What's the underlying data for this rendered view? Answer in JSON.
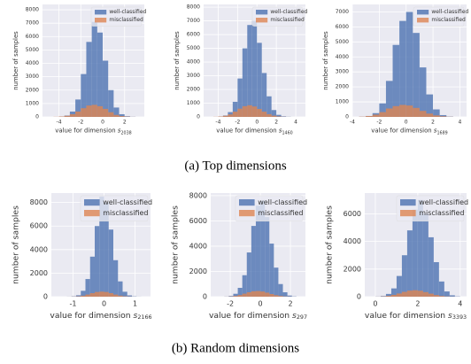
{
  "chart_data": [
    {
      "type": "histogram",
      "xlabel": "value for dimension",
      "xlabel_var": "s",
      "xlabel_sub": "2038",
      "ylabel": "number of samples",
      "bins": [
        -4.5,
        -4,
        -3.5,
        -3,
        -2.5,
        -2,
        -1.5,
        -1,
        -0.5,
        0,
        0.5,
        1,
        1.5,
        2,
        2.5,
        3
      ],
      "series": [
        {
          "name": "well-classified",
          "color": "#4c72b0",
          "values": [
            0,
            20,
            100,
            400,
            1300,
            3200,
            5600,
            7100,
            6300,
            4200,
            2000,
            700,
            200,
            50,
            10
          ]
        },
        {
          "name": "misclassified",
          "color": "#dd8452",
          "values": [
            10,
            30,
            80,
            200,
            400,
            650,
            850,
            900,
            800,
            600,
            350,
            150,
            60,
            20,
            5
          ]
        }
      ],
      "xlim": [
        -5.5,
        3.8
      ],
      "xticks": [
        -4,
        -2,
        0,
        2
      ],
      "ylim": [
        0,
        8400
      ],
      "yticks": [
        0,
        1000,
        2000,
        3000,
        4000,
        5000,
        6000,
        7000,
        8000
      ],
      "grid": true,
      "legend": "upper right"
    },
    {
      "type": "histogram",
      "xlabel": "value for dimension",
      "xlabel_var": "s",
      "xlabel_sub": "1460",
      "ylabel": "number of samples",
      "bins": [
        -4.5,
        -4,
        -3.5,
        -3,
        -2.5,
        -2,
        -1.5,
        -1,
        -0.5,
        0,
        0.5,
        1,
        1.5,
        2,
        2.5,
        3,
        3.5
      ],
      "series": [
        {
          "name": "well-classified",
          "color": "#4c72b0",
          "values": [
            0,
            20,
            100,
            350,
            1100,
            2800,
            5000,
            6700,
            7000,
            5400,
            3200,
            1500,
            500,
            150,
            40,
            10
          ]
        },
        {
          "name": "misclassified",
          "color": "#dd8452",
          "values": [
            10,
            30,
            80,
            180,
            380,
            600,
            780,
            850,
            760,
            580,
            380,
            200,
            90,
            35,
            10,
            3
          ]
        }
      ],
      "xlim": [
        -5.5,
        5
      ],
      "xticks": [
        -4,
        -2,
        0,
        2,
        4
      ],
      "ylim": [
        0,
        8200
      ],
      "yticks": [
        0,
        1000,
        2000,
        3000,
        4000,
        5000,
        6000,
        7000,
        8000
      ],
      "grid": true,
      "legend": "upper right"
    },
    {
      "type": "histogram",
      "xlabel": "value for dimension",
      "xlabel_var": "s",
      "xlabel_sub": "1689",
      "ylabel": "number of samples",
      "bins": [
        -3.5,
        -3,
        -2.5,
        -2,
        -1.5,
        -1,
        -0.5,
        0,
        0.5,
        1,
        1.5,
        2,
        2.5,
        3,
        3.5
      ],
      "series": [
        {
          "name": "well-classified",
          "color": "#4c72b0",
          "values": [
            10,
            60,
            250,
            900,
            2400,
            4800,
            6400,
            7000,
            5600,
            3300,
            1500,
            500,
            120,
            20
          ]
        },
        {
          "name": "misclassified",
          "color": "#dd8452",
          "values": [
            15,
            60,
            150,
            320,
            560,
            720,
            800,
            760,
            600,
            400,
            220,
            100,
            40,
            10
          ]
        }
      ],
      "xlim": [
        -4,
        4.5
      ],
      "xticks": [
        -4,
        -2,
        0,
        2,
        4
      ],
      "ylim": [
        0,
        7500
      ],
      "yticks": [
        0,
        1000,
        2000,
        3000,
        4000,
        5000,
        6000,
        7000
      ],
      "grid": true,
      "legend": "upper right"
    },
    {
      "type": "histogram",
      "xlabel": "value for dimension",
      "xlabel_var": "s",
      "xlabel_sub": "2166",
      "ylabel": "number of samples",
      "bins": [
        -1.2,
        -1.05,
        -0.9,
        -0.75,
        -0.6,
        -0.45,
        -0.3,
        -0.15,
        0,
        0.15,
        0.3,
        0.45,
        0.6,
        0.75,
        0.9,
        1.05,
        1.2
      ],
      "series": [
        {
          "name": "well-classified",
          "color": "#4c72b0",
          "values": [
            5,
            30,
            120,
            500,
            1500,
            3400,
            6000,
            8500,
            8000,
            5700,
            3100,
            1300,
            420,
            110,
            25,
            5
          ]
        },
        {
          "name": "misclassified",
          "color": "#dd8452",
          "values": [
            3,
            10,
            30,
            80,
            180,
            300,
            400,
            430,
            400,
            300,
            180,
            90,
            35,
            12,
            4,
            1
          ]
        }
      ],
      "xlim": [
        -1.7,
        1.5
      ],
      "xticks": [
        -1,
        0,
        1
      ],
      "ylim": [
        0,
        8800
      ],
      "yticks": [
        0,
        2000,
        4000,
        6000,
        8000
      ],
      "grid": true,
      "legend": "upper right"
    },
    {
      "type": "histogram",
      "xlabel": "value for dimension",
      "xlabel_var": "s",
      "xlabel_sub": "297",
      "ylabel": "number of samples",
      "bins": [
        -2.4,
        -2.1,
        -1.8,
        -1.5,
        -1.2,
        -0.9,
        -0.6,
        -0.3,
        0,
        0.3,
        0.6,
        0.9,
        1.2,
        1.5,
        1.8,
        2.1,
        2.4
      ],
      "series": [
        {
          "name": "well-classified",
          "color": "#4c72b0",
          "values": [
            10,
            60,
            230,
            700,
            1700,
            3500,
            5600,
            7200,
            7600,
            6300,
            4200,
            2300,
            1000,
            350,
            90,
            20
          ]
        },
        {
          "name": "misclassified",
          "color": "#dd8452",
          "values": [
            5,
            20,
            60,
            130,
            240,
            350,
            430,
            450,
            410,
            320,
            210,
            120,
            60,
            20,
            8,
            2
          ]
        }
      ],
      "xlim": [
        -3.3,
        3
      ],
      "xticks": [
        -2,
        0,
        2
      ],
      "ylim": [
        0,
        8200
      ],
      "yticks": [
        0,
        2000,
        4000,
        6000,
        8000
      ],
      "grid": true,
      "legend": "upper right"
    },
    {
      "type": "histogram",
      "xlabel": "value for dimension",
      "xlabel_var": "s",
      "xlabel_sub": "3393",
      "ylabel": "number of samples",
      "bins": [
        0,
        0.25,
        0.5,
        0.75,
        1,
        1.25,
        1.5,
        1.75,
        2,
        2.25,
        2.5,
        2.75,
        3,
        3.25,
        3.5,
        3.75,
        4
      ],
      "series": [
        {
          "name": "well-classified",
          "color": "#4c72b0",
          "values": [
            10,
            50,
            200,
            600,
            1500,
            3000,
            4800,
            6300,
            7000,
            6000,
            4300,
            2500,
            1100,
            380,
            100,
            20
          ]
        },
        {
          "name": "misclassified",
          "color": "#dd8452",
          "values": [
            5,
            20,
            60,
            130,
            230,
            350,
            440,
            470,
            430,
            330,
            220,
            120,
            55,
            20,
            7,
            2
          ]
        }
      ],
      "xlim": [
        -0.5,
        4.3
      ],
      "xticks": [
        0,
        2,
        4
      ],
      "ylim": [
        0,
        7500
      ],
      "yticks": [
        0,
        2000,
        4000,
        6000
      ],
      "grid": true,
      "legend": "upper right"
    }
  ],
  "captions": [
    "(a) Top dimensions",
    "(b) Random dimensions"
  ]
}
